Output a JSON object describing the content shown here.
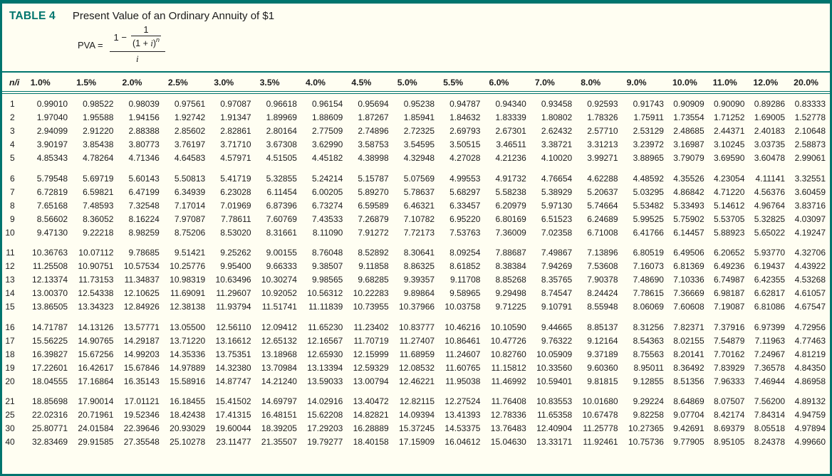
{
  "header": {
    "label": "TABLE 4",
    "title": "Present Value of an Ordinary Annuity of $1"
  },
  "formula": {
    "lhs": "PVA =",
    "numerator_prefix": "1 −",
    "inner_numerator": "1",
    "inner_den_open": "(1 + ",
    "inner_den_i": "i",
    "inner_den_close": ")",
    "inner_den_exp": "n",
    "denominator": "i"
  },
  "colors": {
    "accent": "#00756e",
    "background": "#fffef2",
    "text": "#1b1b1b"
  },
  "table": {
    "corner": "n/i",
    "rates": [
      "1.0%",
      "1.5%",
      "2.0%",
      "2.5%",
      "3.0%",
      "3.5%",
      "4.0%",
      "4.5%",
      "5.0%",
      "5.5%",
      "6.0%",
      "7.0%",
      "8.0%",
      "9.0%",
      "10.0%",
      "11.0%",
      "12.0%",
      "20.0%"
    ],
    "groups": [
      {
        "rows": [
          {
            "n": "1",
            "v": [
              "0.99010",
              "0.98522",
              "0.98039",
              "0.97561",
              "0.97087",
              "0.96618",
              "0.96154",
              "0.95694",
              "0.95238",
              "0.94787",
              "0.94340",
              "0.93458",
              "0.92593",
              "0.91743",
              "0.90909",
              "0.90090",
              "0.89286",
              "0.83333"
            ]
          },
          {
            "n": "2",
            "v": [
              "1.97040",
              "1.95588",
              "1.94156",
              "1.92742",
              "1.91347",
              "1.89969",
              "1.88609",
              "1.87267",
              "1.85941",
              "1.84632",
              "1.83339",
              "1.80802",
              "1.78326",
              "1.75911",
              "1.73554",
              "1.71252",
              "1.69005",
              "1.52778"
            ]
          },
          {
            "n": "3",
            "v": [
              "2.94099",
              "2.91220",
              "2.88388",
              "2.85602",
              "2.82861",
              "2.80164",
              "2.77509",
              "2.74896",
              "2.72325",
              "2.69793",
              "2.67301",
              "2.62432",
              "2.57710",
              "2.53129",
              "2.48685",
              "2.44371",
              "2.40183",
              "2.10648"
            ]
          },
          {
            "n": "4",
            "v": [
              "3.90197",
              "3.85438",
              "3.80773",
              "3.76197",
              "3.71710",
              "3.67308",
              "3.62990",
              "3.58753",
              "3.54595",
              "3.50515",
              "3.46511",
              "3.38721",
              "3.31213",
              "3.23972",
              "3.16987",
              "3.10245",
              "3.03735",
              "2.58873"
            ]
          },
          {
            "n": "5",
            "v": [
              "4.85343",
              "4.78264",
              "4.71346",
              "4.64583",
              "4.57971",
              "4.51505",
              "4.45182",
              "4.38998",
              "4.32948",
              "4.27028",
              "4.21236",
              "4.10020",
              "3.99271",
              "3.88965",
              "3.79079",
              "3.69590",
              "3.60478",
              "2.99061"
            ]
          }
        ]
      },
      {
        "rows": [
          {
            "n": "6",
            "v": [
              "5.79548",
              "5.69719",
              "5.60143",
              "5.50813",
              "5.41719",
              "5.32855",
              "5.24214",
              "5.15787",
              "5.07569",
              "4.99553",
              "4.91732",
              "4.76654",
              "4.62288",
              "4.48592",
              "4.35526",
              "4.23054",
              "4.11141",
              "3.32551"
            ]
          },
          {
            "n": "7",
            "v": [
              "6.72819",
              "6.59821",
              "6.47199",
              "6.34939",
              "6.23028",
              "6.11454",
              "6.00205",
              "5.89270",
              "5.78637",
              "5.68297",
              "5.58238",
              "5.38929",
              "5.20637",
              "5.03295",
              "4.86842",
              "4.71220",
              "4.56376",
              "3.60459"
            ]
          },
          {
            "n": "8",
            "v": [
              "7.65168",
              "7.48593",
              "7.32548",
              "7.17014",
              "7.01969",
              "6.87396",
              "6.73274",
              "6.59589",
              "6.46321",
              "6.33457",
              "6.20979",
              "5.97130",
              "5.74664",
              "5.53482",
              "5.33493",
              "5.14612",
              "4.96764",
              "3.83716"
            ]
          },
          {
            "n": "9",
            "v": [
              "8.56602",
              "8.36052",
              "8.16224",
              "7.97087",
              "7.78611",
              "7.60769",
              "7.43533",
              "7.26879",
              "7.10782",
              "6.95220",
              "6.80169",
              "6.51523",
              "6.24689",
              "5.99525",
              "5.75902",
              "5.53705",
              "5.32825",
              "4.03097"
            ]
          },
          {
            "n": "10",
            "v": [
              "9.47130",
              "9.22218",
              "8.98259",
              "8.75206",
              "8.53020",
              "8.31661",
              "8.11090",
              "7.91272",
              "7.72173",
              "7.53763",
              "7.36009",
              "7.02358",
              "6.71008",
              "6.41766",
              "6.14457",
              "5.88923",
              "5.65022",
              "4.19247"
            ]
          }
        ]
      },
      {
        "rows": [
          {
            "n": "11",
            "v": [
              "10.36763",
              "10.07112",
              "9.78685",
              "9.51421",
              "9.25262",
              "9.00155",
              "8.76048",
              "8.52892",
              "8.30641",
              "8.09254",
              "7.88687",
              "7.49867",
              "7.13896",
              "6.80519",
              "6.49506",
              "6.20652",
              "5.93770",
              "4.32706"
            ]
          },
          {
            "n": "12",
            "v": [
              "11.25508",
              "10.90751",
              "10.57534",
              "10.25776",
              "9.95400",
              "9.66333",
              "9.38507",
              "9.11858",
              "8.86325",
              "8.61852",
              "8.38384",
              "7.94269",
              "7.53608",
              "7.16073",
              "6.81369",
              "6.49236",
              "6.19437",
              "4.43922"
            ]
          },
          {
            "n": "13",
            "v": [
              "12.13374",
              "11.73153",
              "11.34837",
              "10.98319",
              "10.63496",
              "10.30274",
              "9.98565",
              "9.68285",
              "9.39357",
              "9.11708",
              "8.85268",
              "8.35765",
              "7.90378",
              "7.48690",
              "7.10336",
              "6.74987",
              "6.42355",
              "4.53268"
            ]
          },
          {
            "n": "14",
            "v": [
              "13.00370",
              "12.54338",
              "12.10625",
              "11.69091",
              "11.29607",
              "10.92052",
              "10.56312",
              "10.22283",
              "9.89864",
              "9.58965",
              "9.29498",
              "8.74547",
              "8.24424",
              "7.78615",
              "7.36669",
              "6.98187",
              "6.62817",
              "4.61057"
            ]
          },
          {
            "n": "15",
            "v": [
              "13.86505",
              "13.34323",
              "12.84926",
              "12.38138",
              "11.93794",
              "11.51741",
              "11.11839",
              "10.73955",
              "10.37966",
              "10.03758",
              "9.71225",
              "9.10791",
              "8.55948",
              "8.06069",
              "7.60608",
              "7.19087",
              "6.81086",
              "4.67547"
            ]
          }
        ]
      },
      {
        "rows": [
          {
            "n": "16",
            "v": [
              "14.71787",
              "14.13126",
              "13.57771",
              "13.05500",
              "12.56110",
              "12.09412",
              "11.65230",
              "11.23402",
              "10.83777",
              "10.46216",
              "10.10590",
              "9.44665",
              "8.85137",
              "8.31256",
              "7.82371",
              "7.37916",
              "6.97399",
              "4.72956"
            ]
          },
          {
            "n": "17",
            "v": [
              "15.56225",
              "14.90765",
              "14.29187",
              "13.71220",
              "13.16612",
              "12.65132",
              "12.16567",
              "11.70719",
              "11.27407",
              "10.86461",
              "10.47726",
              "9.76322",
              "9.12164",
              "8.54363",
              "8.02155",
              "7.54879",
              "7.11963",
              "4.77463"
            ]
          },
          {
            "n": "18",
            "v": [
              "16.39827",
              "15.67256",
              "14.99203",
              "14.35336",
              "13.75351",
              "13.18968",
              "12.65930",
              "12.15999",
              "11.68959",
              "11.24607",
              "10.82760",
              "10.05909",
              "9.37189",
              "8.75563",
              "8.20141",
              "7.70162",
              "7.24967",
              "4.81219"
            ]
          },
          {
            "n": "19",
            "v": [
              "17.22601",
              "16.42617",
              "15.67846",
              "14.97889",
              "14.32380",
              "13.70984",
              "13.13394",
              "12.59329",
              "12.08532",
              "11.60765",
              "11.15812",
              "10.33560",
              "9.60360",
              "8.95011",
              "8.36492",
              "7.83929",
              "7.36578",
              "4.84350"
            ]
          },
          {
            "n": "20",
            "v": [
              "18.04555",
              "17.16864",
              "16.35143",
              "15.58916",
              "14.87747",
              "14.21240",
              "13.59033",
              "13.00794",
              "12.46221",
              "11.95038",
              "11.46992",
              "10.59401",
              "9.81815",
              "9.12855",
              "8.51356",
              "7.96333",
              "7.46944",
              "4.86958"
            ]
          }
        ]
      },
      {
        "rows": [
          {
            "n": "21",
            "v": [
              "18.85698",
              "17.90014",
              "17.01121",
              "16.18455",
              "15.41502",
              "14.69797",
              "14.02916",
              "13.40472",
              "12.82115",
              "12.27524",
              "11.76408",
              "10.83553",
              "10.01680",
              "9.29224",
              "8.64869",
              "8.07507",
              "7.56200",
              "4.89132"
            ]
          },
          {
            "n": "25",
            "v": [
              "22.02316",
              "20.71961",
              "19.52346",
              "18.42438",
              "17.41315",
              "16.48151",
              "15.62208",
              "14.82821",
              "14.09394",
              "13.41393",
              "12.78336",
              "11.65358",
              "10.67478",
              "9.82258",
              "9.07704",
              "8.42174",
              "7.84314",
              "4.94759"
            ]
          },
          {
            "n": "30",
            "v": [
              "25.80771",
              "24.01584",
              "22.39646",
              "20.93029",
              "19.60044",
              "18.39205",
              "17.29203",
              "16.28889",
              "15.37245",
              "14.53375",
              "13.76483",
              "12.40904",
              "11.25778",
              "10.27365",
              "9.42691",
              "8.69379",
              "8.05518",
              "4.97894"
            ]
          },
          {
            "n": "40",
            "v": [
              "32.83469",
              "29.91585",
              "27.35548",
              "25.10278",
              "23.11477",
              "21.35507",
              "19.79277",
              "18.40158",
              "17.15909",
              "16.04612",
              "15.04630",
              "13.33171",
              "11.92461",
              "10.75736",
              "9.77905",
              "8.95105",
              "8.24378",
              "4.99660"
            ]
          }
        ]
      }
    ]
  }
}
